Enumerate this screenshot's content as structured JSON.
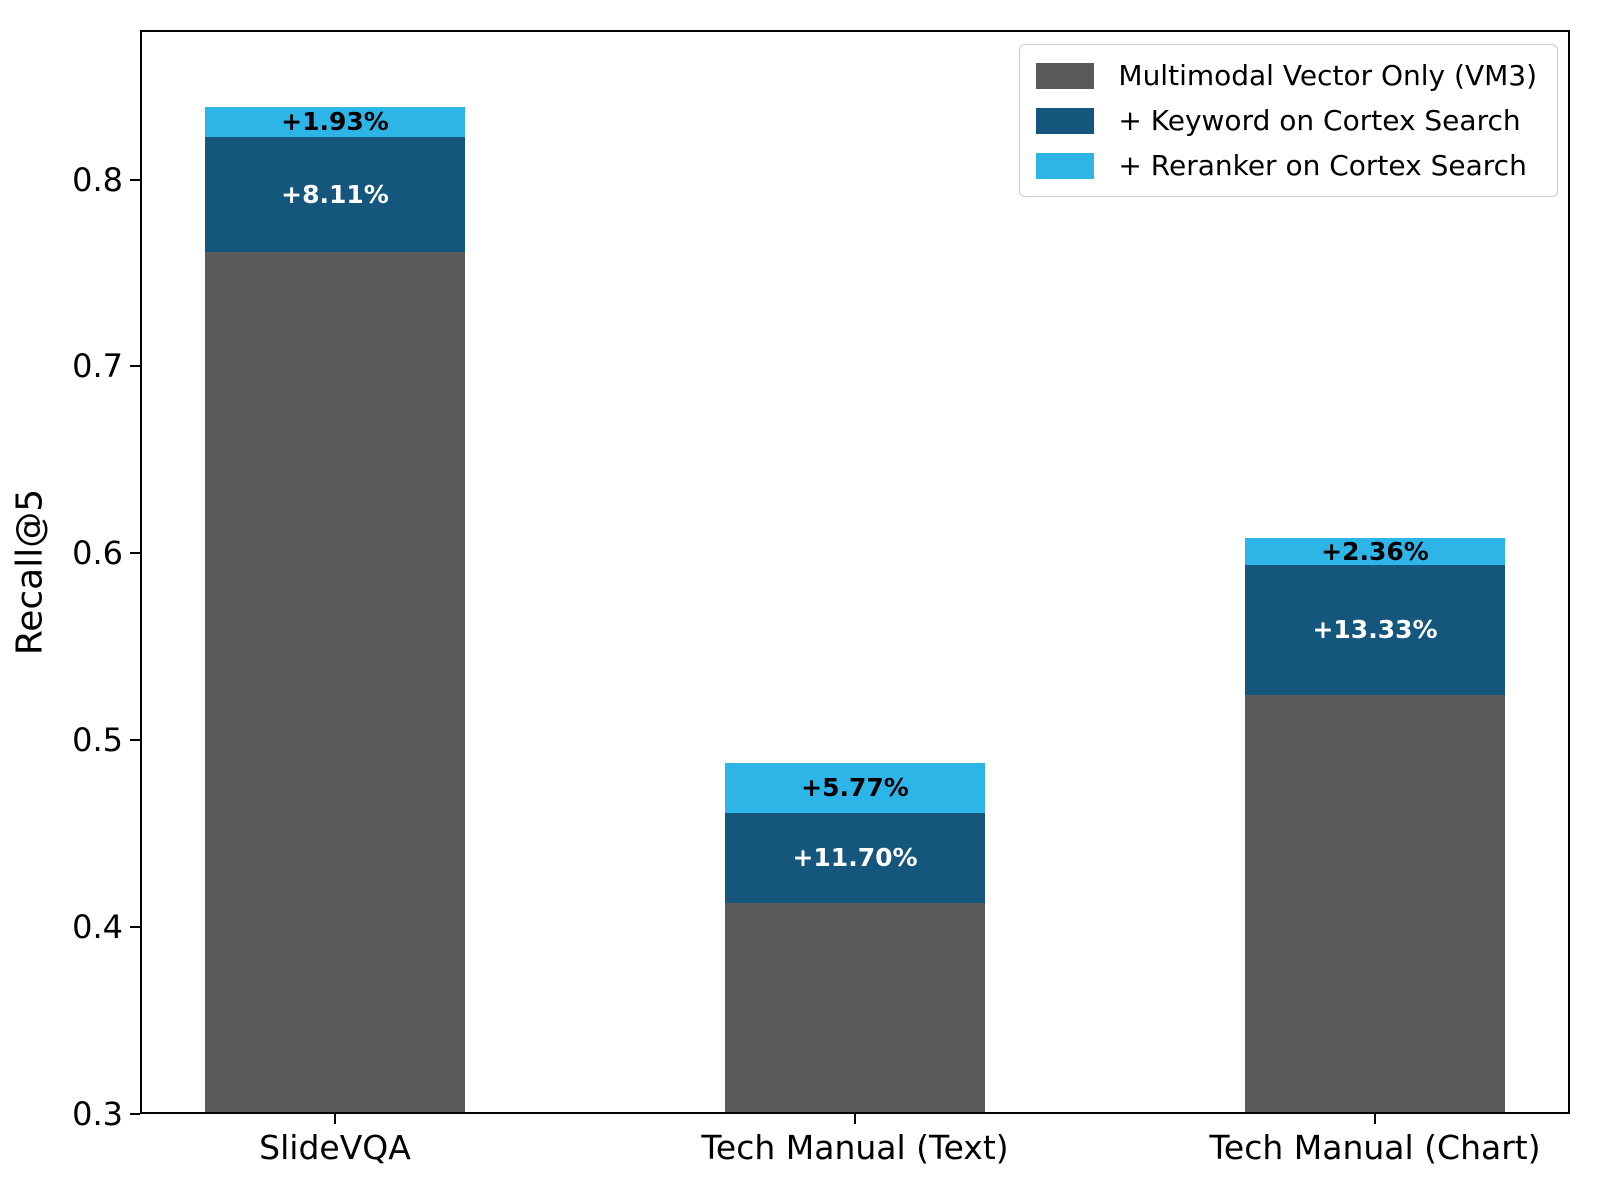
{
  "figure": {
    "background": "#ffffff",
    "frame_color": "#000000"
  },
  "chart_data": {
    "type": "bar",
    "stacked": true,
    "title": "",
    "xlabel": "",
    "ylabel": "Recall@5",
    "categories": [
      "SlideVQA",
      "Tech Manual (Text)",
      "Tech Manual (Chart)"
    ],
    "series": [
      {
        "name": "Multimodal Vector Only (VM3)",
        "color": "#5A5A5A",
        "cumulative_totals": [
          0.761,
          0.413,
          0.524
        ],
        "labels": [
          null,
          null,
          null
        ],
        "label_color": "#ffffff"
      },
      {
        "name": "+ Keyword on Cortex Search",
        "color": "#15567D",
        "cumulative_totals": [
          0.823,
          0.461,
          0.594
        ],
        "labels": [
          "+8.11%",
          "+11.70%",
          "+13.33%"
        ],
        "label_color": "#ffffff"
      },
      {
        "name": "+ Reranker on Cortex Search",
        "color": "#2EB5E8",
        "cumulative_totals": [
          0.839,
          0.488,
          0.608
        ],
        "labels": [
          "+1.93%",
          "+5.77%",
          "+2.36%"
        ],
        "label_color": "#000000"
      }
    ],
    "yticks": [
      "0.3",
      "0.4",
      "0.5",
      "0.6",
      "0.7",
      "0.8"
    ],
    "ylim": [
      0.3,
      0.88
    ],
    "xlim": [
      -0.375,
      2.375
    ],
    "bar_width": 0.5,
    "grid": false,
    "legend_position": "upper right"
  }
}
